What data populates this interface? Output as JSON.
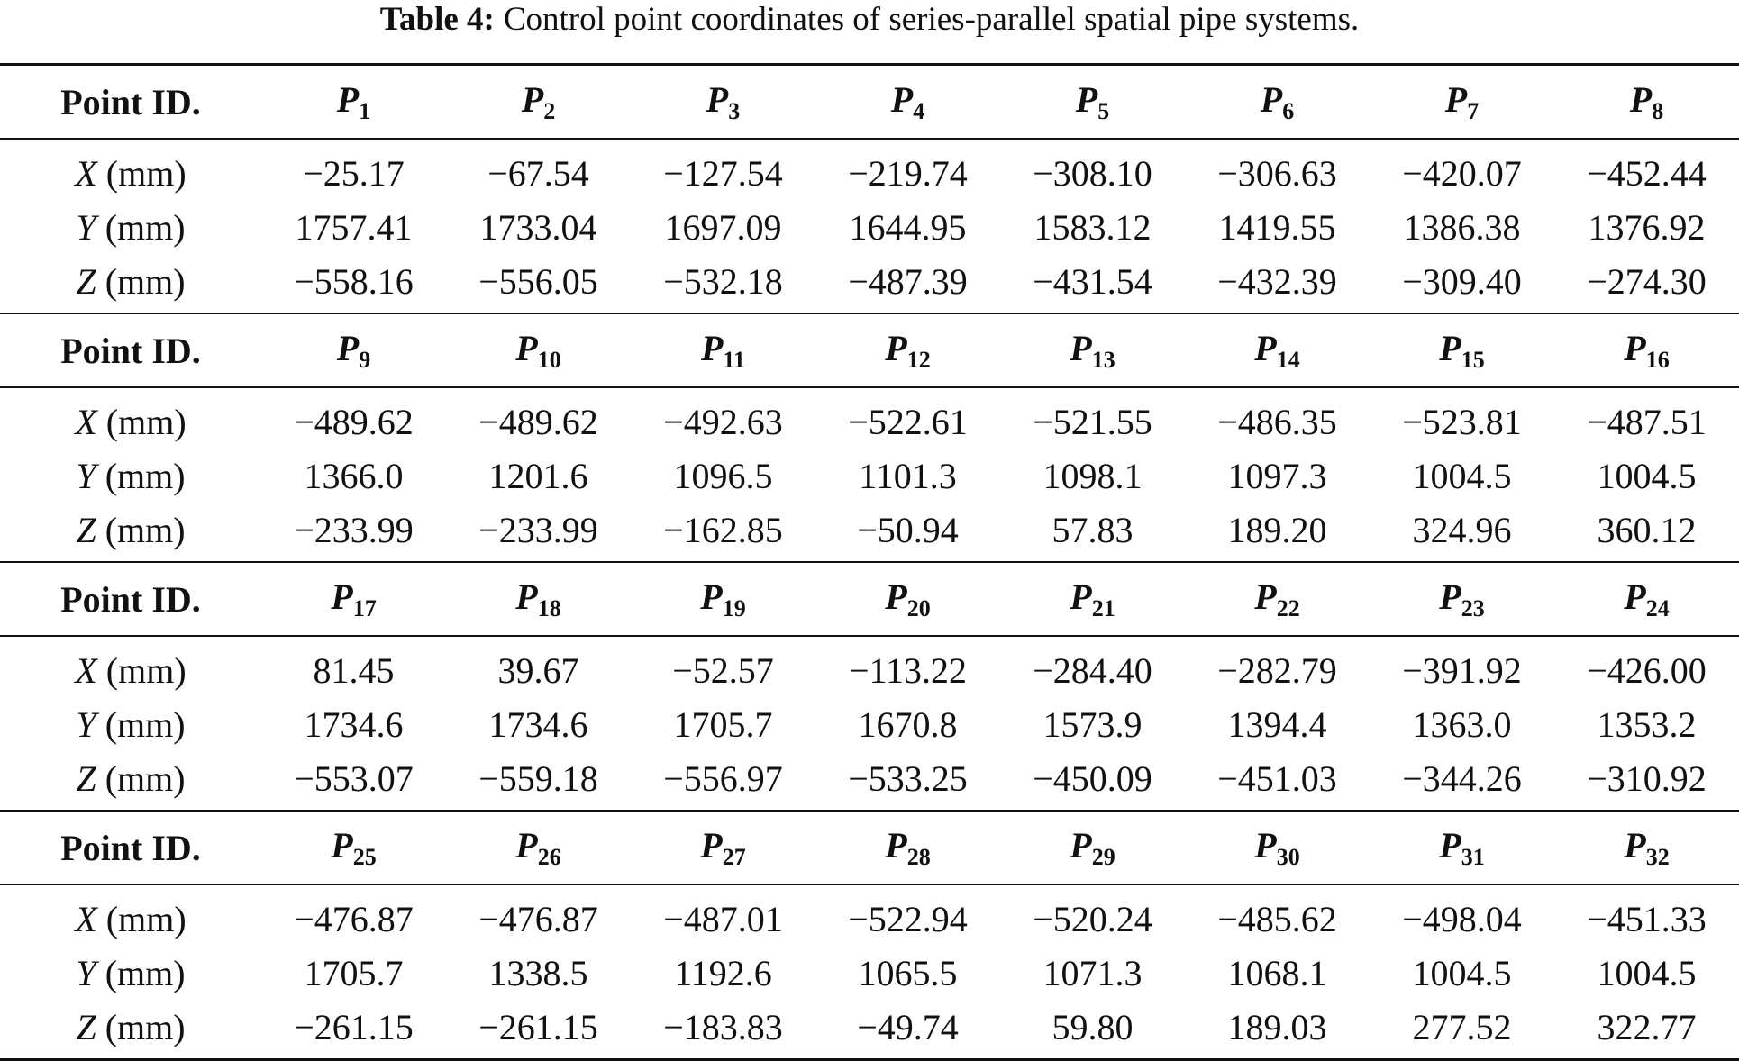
{
  "caption": {
    "label": "Table 4:",
    "text": "Control point coordinates of series-parallel spatial pipe systems."
  },
  "header_label": "Point ID.",
  "point_prefix": "P",
  "units": "(mm)",
  "axes": [
    "X",
    "Y",
    "Z"
  ],
  "blocks": [
    {
      "points": [
        "1",
        "2",
        "3",
        "4",
        "5",
        "6",
        "7",
        "8"
      ],
      "X": [
        "−25.17",
        "−67.54",
        "−127.54",
        "−219.74",
        "−308.10",
        "−306.63",
        "−420.07",
        "−452.44"
      ],
      "Y": [
        "1757.41",
        "1733.04",
        "1697.09",
        "1644.95",
        "1583.12",
        "1419.55",
        "1386.38",
        "1376.92"
      ],
      "Z": [
        "−558.16",
        "−556.05",
        "−532.18",
        "−487.39",
        "−431.54",
        "−432.39",
        "−309.40",
        "−274.30"
      ]
    },
    {
      "points": [
        "9",
        "10",
        "11",
        "12",
        "13",
        "14",
        "15",
        "16"
      ],
      "X": [
        "−489.62",
        "−489.62",
        "−492.63",
        "−522.61",
        "−521.55",
        "−486.35",
        "−523.81",
        "−487.51"
      ],
      "Y": [
        "1366.0",
        "1201.6",
        "1096.5",
        "1101.3",
        "1098.1",
        "1097.3",
        "1004.5",
        "1004.5"
      ],
      "Z": [
        "−233.99",
        "−233.99",
        "−162.85",
        "−50.94",
        "57.83",
        "189.20",
        "324.96",
        "360.12"
      ]
    },
    {
      "points": [
        "17",
        "18",
        "19",
        "20",
        "21",
        "22",
        "23",
        "24"
      ],
      "X": [
        "81.45",
        "39.67",
        "−52.57",
        "−113.22",
        "−284.40",
        "−282.79",
        "−391.92",
        "−426.00"
      ],
      "Y": [
        "1734.6",
        "1734.6",
        "1705.7",
        "1670.8",
        "1573.9",
        "1394.4",
        "1363.0",
        "1353.2"
      ],
      "Z": [
        "−553.07",
        "−559.18",
        "−556.97",
        "−533.25",
        "−450.09",
        "−451.03",
        "−344.26",
        "−310.92"
      ]
    },
    {
      "points": [
        "25",
        "26",
        "27",
        "28",
        "29",
        "30",
        "31",
        "32"
      ],
      "X": [
        "−476.87",
        "−476.87",
        "−487.01",
        "−522.94",
        "−520.24",
        "−485.62",
        "−498.04",
        "−451.33"
      ],
      "Y": [
        "1705.7",
        "1338.5",
        "1192.6",
        "1065.5",
        "1071.3",
        "1068.1",
        "1004.5",
        "1004.5"
      ],
      "Z": [
        "−261.15",
        "−261.15",
        "−183.83",
        "−49.74",
        "59.80",
        "189.03",
        "277.52",
        "322.77"
      ]
    }
  ]
}
